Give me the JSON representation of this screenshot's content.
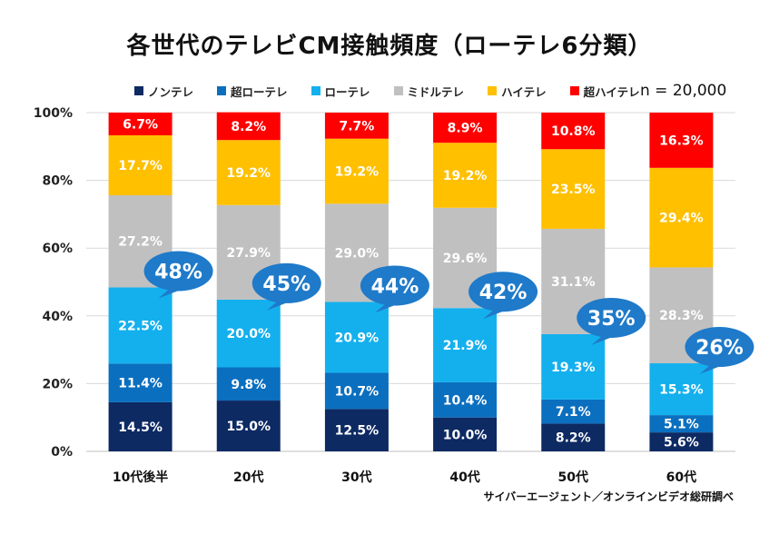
{
  "title": "各世代のテレビCM接触頻度（ローテレ6分類）",
  "sample_size": "n = 20,000",
  "source": "サイバーエージェント／オンラインビデオ総研調べ",
  "chart_data": {
    "type": "bar",
    "stacked": true,
    "title": "各世代のテレビCM接触頻度（ローテレ6分類）",
    "categories": [
      "10代後半",
      "20代",
      "30代",
      "40代",
      "50代",
      "60代"
    ],
    "ylim": [
      0,
      100
    ],
    "yticks": [
      "0%",
      "20%",
      "40%",
      "60%",
      "80%",
      "100%"
    ],
    "grid": true,
    "legend_position": "top",
    "series": [
      {
        "name": "ノンテレ",
        "color": "#0d2a63",
        "values": [
          14.5,
          15.0,
          12.5,
          10.0,
          8.2,
          5.6
        ],
        "labels": [
          "14.5%",
          "15.0%",
          "12.5%",
          "10.0%",
          "8.2%",
          "5.6%"
        ]
      },
      {
        "name": "超ローテレ",
        "color": "#0b6fbf",
        "values": [
          11.4,
          9.8,
          10.7,
          10.4,
          7.1,
          5.1
        ],
        "labels": [
          "11.4%",
          "9.8%",
          "10.7%",
          "10.4%",
          "7.1%",
          "5.1%"
        ]
      },
      {
        "name": "ローテレ",
        "color": "#14b0ee",
        "values": [
          22.5,
          20.0,
          20.9,
          21.9,
          19.3,
          15.3
        ],
        "labels": [
          "22.5%",
          "20.0%",
          "20.9%",
          "21.9%",
          "19.3%",
          "15.3%"
        ]
      },
      {
        "name": "ミドルテレ",
        "color": "#c0c0c0",
        "values": [
          27.2,
          27.9,
          29.0,
          29.6,
          31.1,
          28.3
        ],
        "labels": [
          "27.2%",
          "27.9%",
          "29.0%",
          "29.6%",
          "31.1%",
          "28.3%"
        ]
      },
      {
        "name": "ハイテレ",
        "color": "#ffc000",
        "values": [
          17.7,
          19.2,
          19.2,
          19.2,
          23.5,
          29.4
        ],
        "labels": [
          "17.7%",
          "19.2%",
          "19.2%",
          "19.2%",
          "23.5%",
          "29.4%"
        ]
      },
      {
        "name": "超ハイテレ",
        "color": "#ff0000",
        "values": [
          6.7,
          8.2,
          7.7,
          8.9,
          10.8,
          16.3
        ],
        "labels": [
          "6.7%",
          "8.2%",
          "7.7%",
          "8.9%",
          "10.8%",
          "16.3%"
        ]
      }
    ],
    "callouts": {
      "color": "#1f7ac9",
      "labels": [
        "48%",
        "45%",
        "44%",
        "42%",
        "35%",
        "26%"
      ],
      "values": [
        48.4,
        44.8,
        44.1,
        42.3,
        34.6,
        26.0
      ]
    }
  }
}
